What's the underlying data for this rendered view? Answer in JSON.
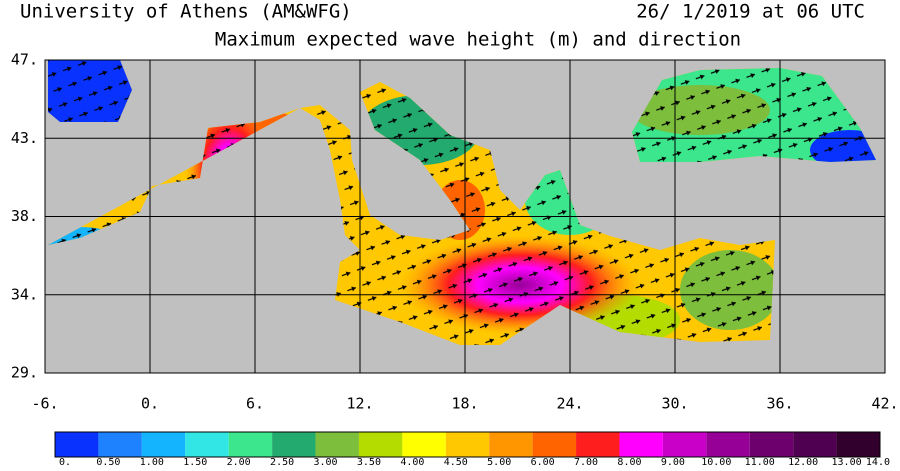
{
  "header": {
    "left": "University of Athens (AM&WFG)",
    "right": "26/ 1/2019 at 06 UTC",
    "subtitle": "Maximum expected wave height (m) and direction"
  },
  "map": {
    "lon_range": [
      -6,
      42
    ],
    "lat_range": [
      29,
      47
    ],
    "lat_ticks": [
      {
        "value": 47,
        "label": "47."
      },
      {
        "value": 42.5,
        "label": "43."
      },
      {
        "value": 38,
        "label": "38."
      },
      {
        "value": 33.5,
        "label": "34."
      },
      {
        "value": 29,
        "label": "29."
      }
    ],
    "lon_ticks": [
      {
        "value": -6,
        "label": "-6."
      },
      {
        "value": 0,
        "label": "0."
      },
      {
        "value": 6,
        "label": "6."
      },
      {
        "value": 12,
        "label": "12."
      },
      {
        "value": 18,
        "label": "18."
      },
      {
        "value": 24,
        "label": "24."
      },
      {
        "value": 30,
        "label": "30."
      },
      {
        "value": 36,
        "label": "36."
      },
      {
        "value": 42,
        "label": "42."
      }
    ]
  },
  "colorbar": {
    "labels": [
      "0.",
      "0.50",
      "1.00",
      "1.50",
      "2.00",
      "2.50",
      "3.00",
      "3.50",
      "4.00",
      "4.50",
      "5.00",
      "6.00",
      "7.00",
      "8.00",
      "9.00",
      "10.00",
      "11.00",
      "12.00",
      "13.00",
      "14.0"
    ],
    "colors": [
      "#0a32ff",
      "#1e82ff",
      "#14b4ff",
      "#32e6e6",
      "#3ce68c",
      "#23aa6e",
      "#7dbe3c",
      "#b4dc00",
      "#ffff00",
      "#ffc800",
      "#ff9600",
      "#ff6400",
      "#ff1e1e",
      "#ff00ff",
      "#c800c8",
      "#960096",
      "#6e006e",
      "#500050",
      "#32002d"
    ]
  }
}
